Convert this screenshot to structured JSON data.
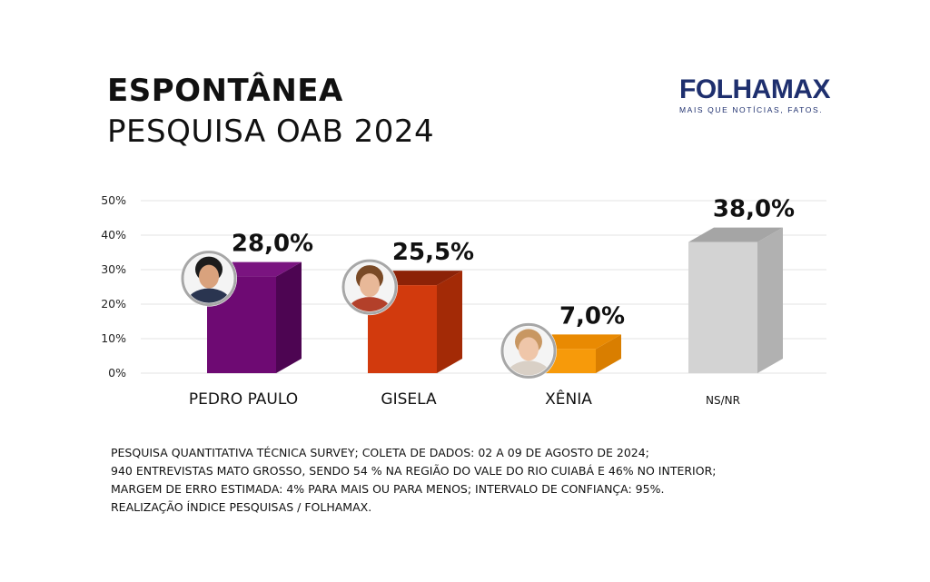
{
  "header": {
    "title": "ESPONTÂNEA",
    "subtitle": "PESQUISA OAB 2024"
  },
  "logo": {
    "name": "FOLHAMAX",
    "tagline": "MAIS QUE NOTÍCIAS, FATOS."
  },
  "chart_data": {
    "type": "bar",
    "title": "ESPONTÂNEA",
    "subtitle": "PESQUISA OAB 2024",
    "categories": [
      "PEDRO PAULO",
      "GISELA",
      "XÊNIA",
      "NS/NR"
    ],
    "values": [
      28.0,
      25.5,
      7.0,
      38.0
    ],
    "value_labels": [
      "28,0%",
      "25,5%",
      "7,0%",
      "38,0%"
    ],
    "yticks": [
      "0%",
      "10%",
      "20%",
      "30%",
      "40%",
      "50%"
    ],
    "ylim": [
      0,
      50
    ],
    "grid": true,
    "has_photo": [
      true,
      true,
      true,
      false
    ],
    "colors": [
      {
        "front": "#6e0a73",
        "side": "#4d0552",
        "top": "#7a1480"
      },
      {
        "front": "#d23a0d",
        "side": "#a32a06",
        "top": "#8c2207"
      },
      {
        "front": "#f79a0a",
        "side": "#d97e00",
        "top": "#e98a02"
      },
      {
        "front": "#d3d3d3",
        "side": "#b1b1b1",
        "top": "#a5a5a5"
      }
    ]
  },
  "footnote": [
    "PESQUISA QUANTITATIVA TÉCNICA SURVEY; COLETA DE DADOS: 02 A 09 DE AGOSTO DE 2024;",
    "940 ENTREVISTAS MATO GROSSO, SENDO 54 % NA REGIÃO DO VALE DO RIO CUIABÁ E 46% NO INTERIOR;",
    "MARGEM DE ERRO ESTIMADA: 4% PARA MAIS OU PARA MENOS; INTERVALO DE CONFIANÇA: 95%.",
    "REALIZAÇÃO ÍNDICE PESQUISAS / FOLHAMAX."
  ]
}
